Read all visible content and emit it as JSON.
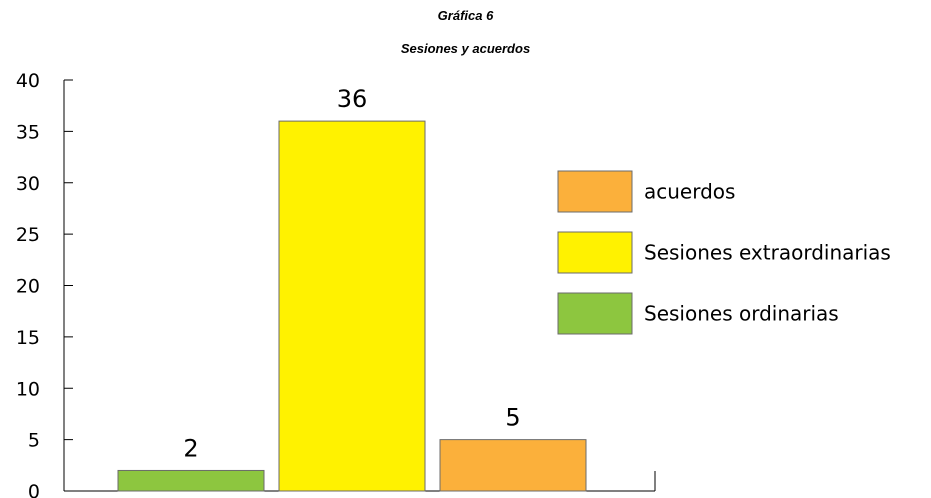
{
  "chart_data": {
    "type": "bar",
    "title": "Gráfica 6",
    "subtitle": "Sesiones y acuerdos",
    "categories": [
      "Sesiones ordinarias",
      "Sesiones extraordinarias",
      "acuerdos"
    ],
    "values": [
      2,
      36,
      5
    ],
    "data_labels": [
      "2",
      "36",
      "5"
    ],
    "colors": [
      "#8dc63f",
      "#fff200",
      "#fbb03b"
    ],
    "ylim": [
      0,
      40
    ],
    "yticks": [
      0,
      5,
      10,
      15,
      20,
      25,
      30,
      35,
      40
    ],
    "xlabel": "",
    "ylabel": "",
    "grid": false,
    "legend": {
      "placement": "right",
      "entries": [
        {
          "label": "acuerdos",
          "color": "#fbb03b"
        },
        {
          "label": "Sesiones extraordinarias",
          "color": "#fff200"
        },
        {
          "label": "Sesiones ordinarias",
          "color": "#8dc63f"
        }
      ]
    }
  }
}
